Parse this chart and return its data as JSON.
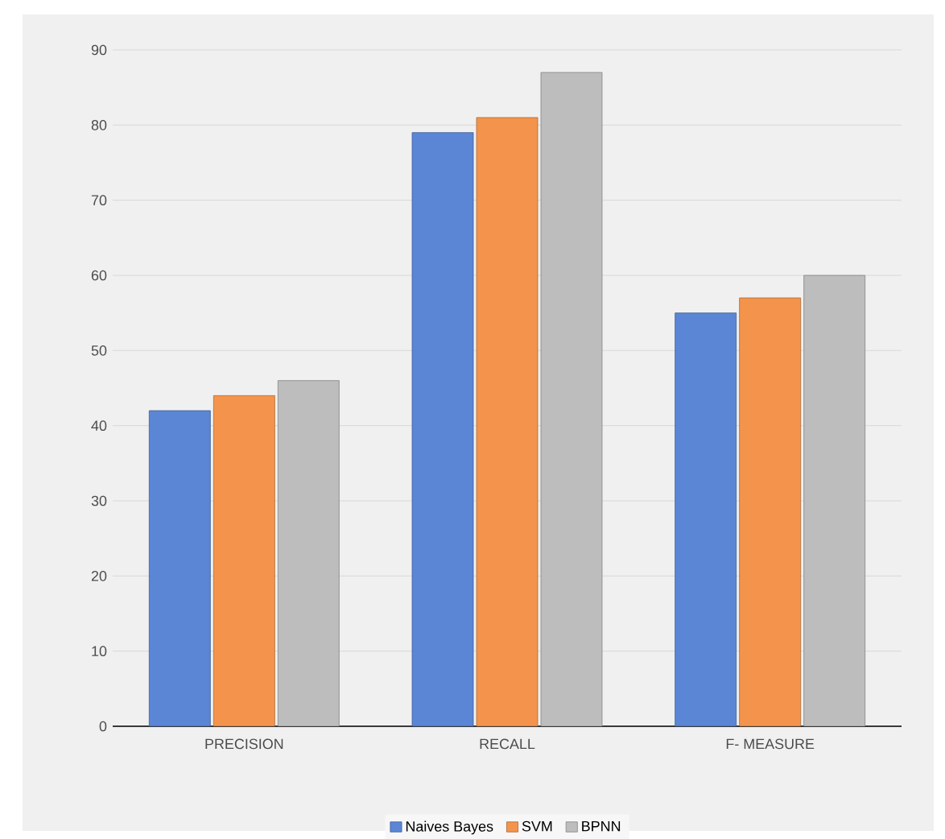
{
  "chart_data": {
    "type": "bar",
    "categories": [
      "PRECISION",
      "RECALL",
      "F- MEASURE"
    ],
    "series": [
      {
        "name": "Naives Bayes",
        "color": "#5b86d6",
        "values": [
          42,
          79,
          55
        ]
      },
      {
        "name": "SVM",
        "color": "#f4944c",
        "values": [
          44,
          81,
          57
        ]
      },
      {
        "name": "BPNN",
        "color": "#bdbdbd",
        "values": [
          46,
          87,
          60
        ]
      }
    ],
    "ylim": [
      0,
      90
    ],
    "yticks": [
      0,
      10,
      20,
      30,
      40,
      50,
      60,
      70,
      80,
      90
    ],
    "grid": "y",
    "legend": "bottom"
  }
}
